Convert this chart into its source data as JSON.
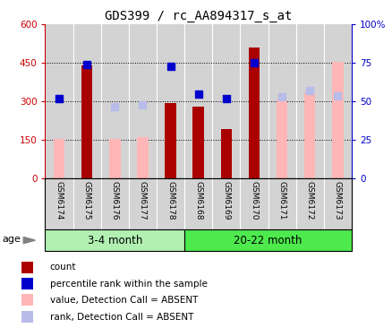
{
  "title": "GDS399 / rc_AA894317_s_at",
  "samples": [
    "GSM6174",
    "GSM6175",
    "GSM6176",
    "GSM6177",
    "GSM6178",
    "GSM6168",
    "GSM6169",
    "GSM6170",
    "GSM6171",
    "GSM6172",
    "GSM6173"
  ],
  "group1_label": "3-4 month",
  "group2_label": "20-22 month",
  "group1_color": "#b2f0b2",
  "group2_color": "#4de94d",
  "count_values": [
    null,
    440,
    null,
    null,
    295,
    280,
    195,
    510,
    null,
    null,
    null
  ],
  "value_absent": [
    155,
    null,
    155,
    163,
    null,
    null,
    null,
    null,
    308,
    335,
    455
  ],
  "rank_absent_pct": [
    52,
    null,
    47,
    48,
    null,
    null,
    null,
    null,
    53,
    57,
    54
  ],
  "percentile_rank": [
    52,
    74,
    null,
    null,
    73,
    55,
    52,
    75,
    null,
    null,
    null
  ],
  "ylim_left": [
    0,
    600
  ],
  "ylim_right": [
    0,
    100
  ],
  "yticks_left": [
    0,
    150,
    300,
    450,
    600
  ],
  "yticks_right": [
    0,
    25,
    50,
    75,
    100
  ],
  "ytick_labels_right": [
    "0",
    "25",
    "50",
    "75",
    "100%"
  ],
  "left_axis_color": "#cc0000",
  "right_axis_color": "#0000cc",
  "count_color": "#aa0000",
  "absent_value_color": "#ffb6b6",
  "absent_rank_color": "#b8bce8",
  "percentile_color": "#0000cc",
  "sample_bg_color": "#d3d3d3",
  "bar_width": 0.4,
  "group_divider": 4.5,
  "legend_items": [
    {
      "color": "#aa0000",
      "label": "count"
    },
    {
      "color": "#0000cc",
      "label": "percentile rank within the sample"
    },
    {
      "color": "#ffb6b6",
      "label": "value, Detection Call = ABSENT"
    },
    {
      "color": "#b8bce8",
      "label": "rank, Detection Call = ABSENT"
    }
  ]
}
